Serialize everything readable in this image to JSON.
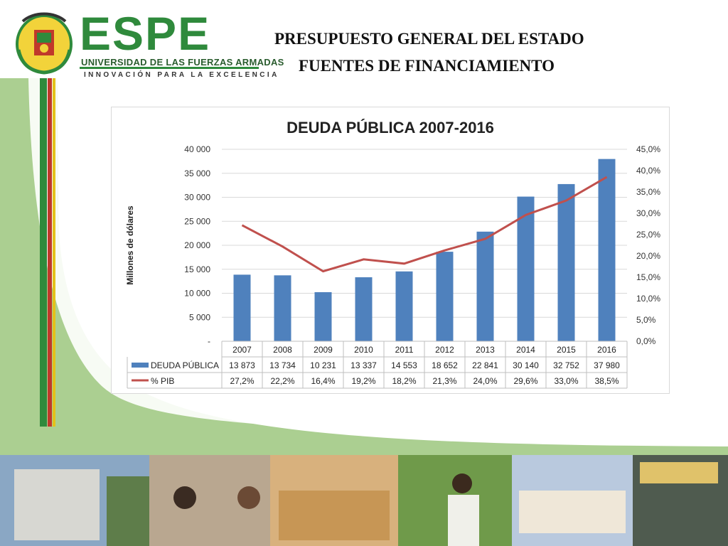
{
  "header": {
    "brand": "ESPE",
    "brand_subtitle": "UNIVERSIDAD DE LAS FUERZAS ARMADAS",
    "brand_tagline": "INNOVACIÓN PARA LA EXCELENCIA",
    "title_line1": "PRESUPUESTO GENERAL DEL ESTADO",
    "title_line2": "FUENTES DE FINANCIAMIENTO"
  },
  "colors": {
    "bar": "#4f81bd",
    "line": "#c0504d",
    "brand_green": "#2f8a3c",
    "side_green": "#8bbb6a"
  },
  "chart_data": {
    "type": "bar",
    "title": "DEUDA PÚBLICA 2007-2016",
    "ylabel": "Millones de dólares",
    "categories": [
      "2007",
      "2008",
      "2009",
      "2010",
      "2011",
      "2012",
      "2013",
      "2014",
      "2015",
      "2016"
    ],
    "series": [
      {
        "name": "DEUDA PÚBLICA",
        "kind": "bar",
        "axis": "left",
        "values": [
          13873,
          13734,
          10231,
          13337,
          14553,
          18652,
          22841,
          30140,
          32752,
          37980
        ],
        "labels": [
          "13 873",
          "13 734",
          "10 231",
          "13 337",
          "14 553",
          "18 652",
          "22 841",
          "30 140",
          "32 752",
          "37 980"
        ]
      },
      {
        "name": "% PIB",
        "kind": "line",
        "axis": "right",
        "values": [
          27.2,
          22.2,
          16.4,
          19.2,
          18.2,
          21.3,
          24.0,
          29.6,
          33.0,
          38.5
        ],
        "labels": [
          "27,2%",
          "22,2%",
          "16,4%",
          "19,2%",
          "18,2%",
          "21,3%",
          "24,0%",
          "29,6%",
          "33,0%",
          "38,5%"
        ]
      }
    ],
    "ylim": [
      0,
      40000
    ],
    "y2lim": [
      0,
      45
    ],
    "yticks": [
      "-",
      "5 000",
      "10 000",
      "15 000",
      "20 000",
      "25 000",
      "30 000",
      "35 000",
      "40 000"
    ],
    "y2ticks": [
      "0,0%",
      "5,0%",
      "10,0%",
      "15,0%",
      "20,0%",
      "25,0%",
      "30,0%",
      "35,0%",
      "40,0%",
      "45,0%"
    ],
    "grid": true,
    "legend": "data-table-below"
  }
}
